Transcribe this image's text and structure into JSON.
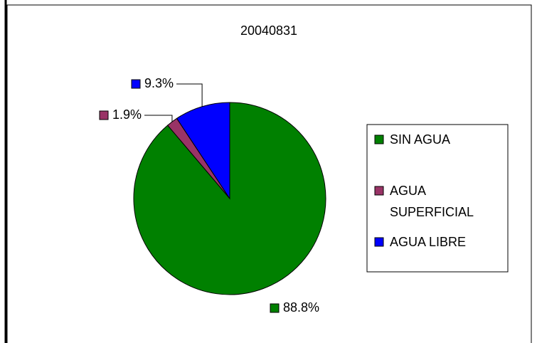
{
  "chart_data": {
    "type": "pie",
    "title": "20040831",
    "categories": [
      "SIN AGUA",
      "AGUA SUPERFICIAL",
      "AGUA LIBRE"
    ],
    "values": [
      88.8,
      1.9,
      9.3
    ],
    "value_labels": [
      "88.8%",
      "1.9%",
      "9.3%"
    ],
    "colors": [
      "#008000",
      "#993366",
      "#0000ff"
    ],
    "legend": "right"
  }
}
